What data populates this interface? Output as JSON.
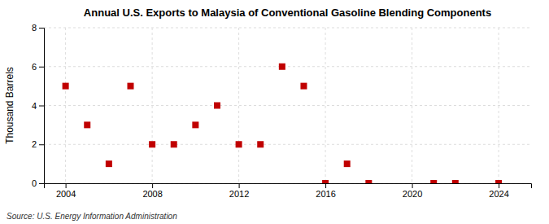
{
  "chart_data": {
    "type": "scatter",
    "title": "Annual U.S. Exports to Malaysia of Conventional Gasoline Blending Components",
    "ylabel": "Thousand Barrels",
    "annotations": [
      "Source: U.S. Energy Information Administration"
    ],
    "x": [
      2004,
      2005,
      2006,
      2007,
      2008,
      2009,
      2010,
      2011,
      2012,
      2013,
      2014,
      2015,
      2016,
      2017,
      2018,
      2021,
      2022,
      2024
    ],
    "values": [
      5,
      3,
      1,
      5,
      2,
      2,
      3,
      4,
      2,
      2,
      6,
      5,
      0,
      1,
      0,
      0,
      0,
      0
    ],
    "color": "#c00000",
    "marker": "square",
    "xlim": [
      2003.0,
      2025.5
    ],
    "xticks": [
      2004,
      2008,
      2012,
      2016,
      2020,
      2024
    ],
    "ylim": [
      0,
      8
    ],
    "yticks": [
      0,
      2,
      4,
      6,
      8
    ],
    "grid": true
  }
}
